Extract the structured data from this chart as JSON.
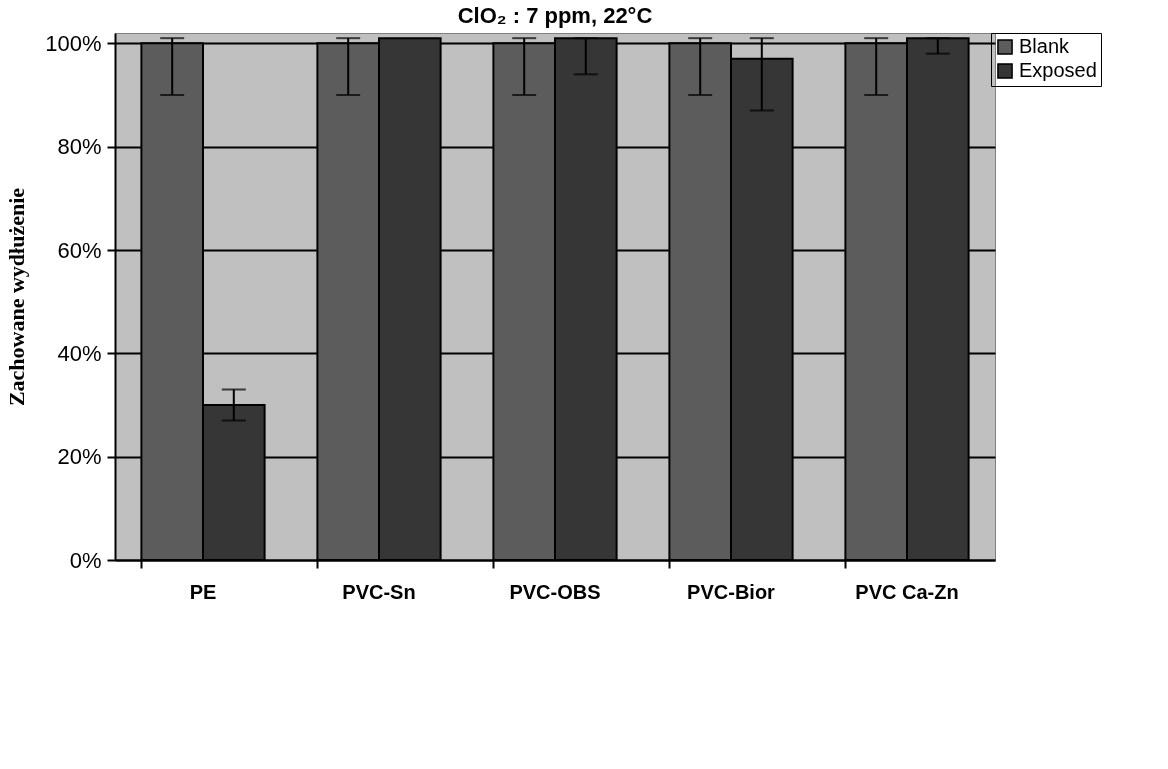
{
  "chart_data": {
    "type": "bar",
    "title": "ClO₂ : 7 ppm, 22°C",
    "ylabel": "Zachowane wydłużenie",
    "categories": [
      "PE",
      "PVC-Sn",
      "PVC-OBS",
      "PVC-Bior",
      "PVC Ca-Zn"
    ],
    "series": [
      {
        "name": "Blank",
        "color": "#5c5c5c",
        "values": [
          100,
          100,
          100,
          100,
          100
        ],
        "errors": [
          [
            90,
            101
          ],
          [
            90,
            101
          ],
          [
            90,
            101
          ],
          [
            90,
            101
          ],
          [
            90,
            101
          ]
        ]
      },
      {
        "name": "Exposed",
        "color": "#363636",
        "values": [
          30,
          101,
          101,
          97,
          101
        ],
        "errors": [
          [
            27,
            33
          ],
          null,
          [
            94,
            101
          ],
          [
            87,
            101
          ],
          [
            98,
            101
          ]
        ]
      }
    ],
    "ylim": [
      0,
      102
    ],
    "yticks": [
      {
        "value": 0,
        "label": "0%"
      },
      {
        "value": 20,
        "label": "20%"
      },
      {
        "value": 40,
        "label": "40%"
      },
      {
        "value": 60,
        "label": "60%"
      },
      {
        "value": 80,
        "label": "80%"
      },
      {
        "value": 100,
        "label": "100%"
      }
    ],
    "grid": "y",
    "legend": "top right"
  }
}
